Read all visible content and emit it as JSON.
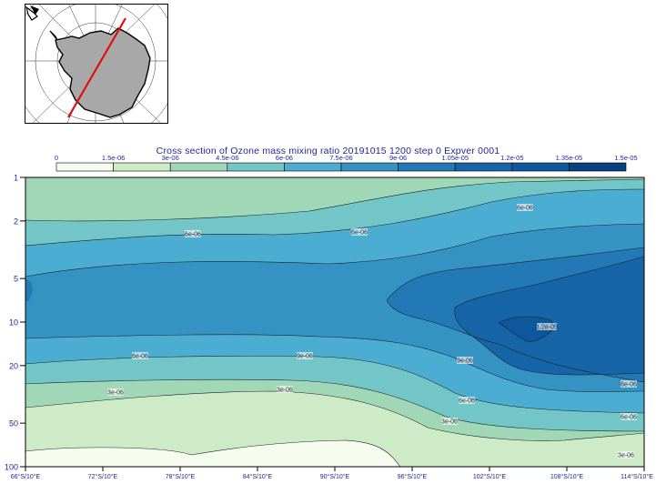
{
  "chart_data": {
    "type": "heatmap",
    "title": "Cross section of Ozone mass mixing ratio 20191015 1200 step 0 Expver 0001",
    "colorbar": {
      "ticks": [
        "0",
        "1.5e-06",
        "3e-06",
        "4.5e-06",
        "6e-06",
        "7.5e-06",
        "9e-06",
        "1.05e-05",
        "1.2e-05",
        "1.35e-05",
        "1.5e-05"
      ],
      "colors": [
        "#f7fcf0",
        "#cdebc7",
        "#a0d8b7",
        "#73c6c8",
        "#4cadd3",
        "#3593c4",
        "#2279b5",
        "#1565a8",
        "#0d579c",
        "#084081"
      ]
    },
    "x_ticks": [
      "66°S/10°E",
      "72°S/10°E",
      "78°S/10°E",
      "84°S/10°E",
      "90°S/10°E",
      "96°S/10°E",
      "102°S/10°E",
      "108°S/10°E",
      "114°S/10°E"
    ],
    "y_ticks": [
      "1",
      "2",
      "5",
      "10",
      "20",
      "50",
      "100"
    ],
    "ylim": [
      100,
      1
    ],
    "y_scale": "log",
    "contour_labels": [
      "6e-06",
      "6e-06",
      "6e-06",
      "6e-06",
      "9e-06",
      "9e-06",
      "3e-06",
      "3e-06",
      "3e-06",
      "6e-06",
      "6e-06",
      "6e-06",
      "3e-06",
      "1.2e-05"
    ]
  },
  "map": {
    "land_color": "#a8a8a8",
    "section_line_color": "#e01010"
  }
}
